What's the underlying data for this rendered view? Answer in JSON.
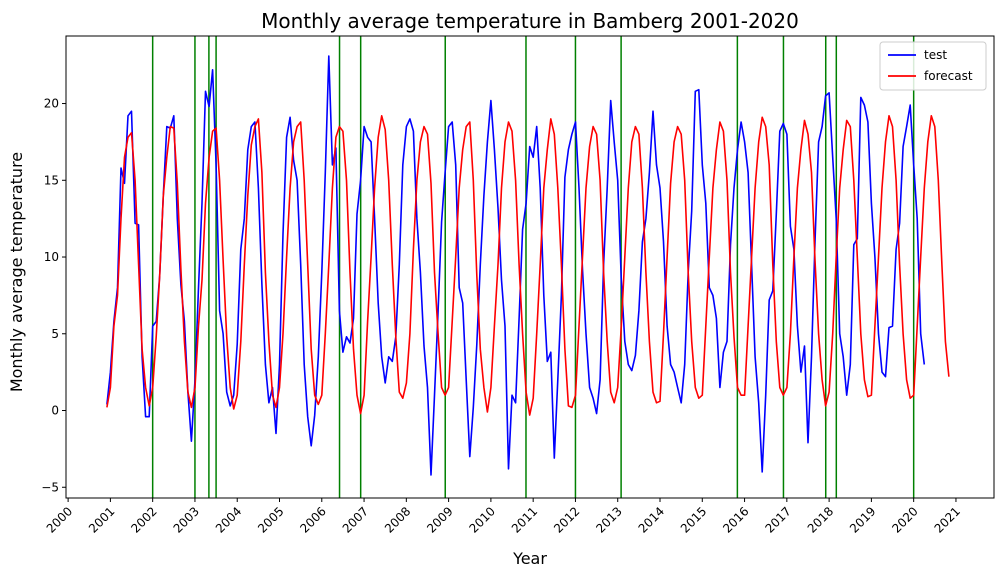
{
  "chart_data": {
    "type": "line",
    "title": "Monthly average temperature in Bamberg 2001-2020",
    "xlabel": "Year",
    "ylabel": "Monthly average temperature",
    "xlim": [
      1999.95,
      2021.9
    ],
    "ylim": [
      -5.7,
      24.4
    ],
    "x_ticks": [
      2000,
      2001,
      2002,
      2003,
      2004,
      2005,
      2006,
      2007,
      2008,
      2009,
      2010,
      2011,
      2012,
      2013,
      2014,
      2015,
      2016,
      2017,
      2018,
      2019,
      2020,
      2021
    ],
    "y_ticks": [
      -5,
      0,
      5,
      10,
      15,
      20
    ],
    "grid": false,
    "legend_position": "top-right",
    "x_start": 2000.917,
    "x_step_months": 1,
    "series": [
      {
        "name": "test",
        "color": "#0000ff",
        "values": [
          0.4,
          2.5,
          5.8,
          8.0,
          15.8,
          14.8,
          19.2,
          19.5,
          12.2,
          12.1,
          3.5,
          -0.4,
          -0.4,
          5.5,
          5.8,
          8.8,
          14.0,
          18.5,
          18.4,
          19.2,
          12.5,
          8.2,
          5.8,
          1.2,
          -2.0,
          2.0,
          8.0,
          13.5,
          20.8,
          19.8,
          22.2,
          16.0,
          6.5,
          5.0,
          1.2,
          0.3,
          1.0,
          4.3,
          10.5,
          12.5,
          17.0,
          18.5,
          18.8,
          14.5,
          8.2,
          3.0,
          0.5,
          1.5,
          -1.5,
          3.0,
          11.5,
          17.8,
          19.1,
          16.3,
          15.0,
          9.5,
          3.0,
          -0.4,
          -2.3,
          -0.3,
          3.5,
          9.0,
          15.5,
          23.1,
          16.0,
          17.1,
          6.5,
          3.8,
          4.8,
          4.4,
          6.0,
          12.8,
          15.0,
          18.5,
          17.8,
          17.5,
          12.5,
          7.0,
          3.5,
          1.8,
          3.5,
          3.2,
          4.8,
          9.5,
          16.0,
          18.5,
          19.0,
          18.2,
          12.5,
          9.0,
          4.2,
          1.5,
          -4.2,
          1.0,
          6.5,
          12.3,
          15.5,
          18.5,
          18.8,
          16.0,
          8.0,
          7.0,
          2.0,
          -3.0,
          0.2,
          4.3,
          9.5,
          14.0,
          17.5,
          20.2,
          17.0,
          13.2,
          8.5,
          5.5,
          -3.8,
          1.0,
          0.5,
          6.0,
          11.8,
          13.5,
          17.2,
          16.5,
          18.5,
          14.5,
          7.5,
          3.2,
          3.8,
          -3.1,
          2.0,
          7.5,
          15.2,
          17.0,
          18.0,
          18.8,
          14.5,
          9.2,
          5.0,
          1.5,
          0.8,
          -0.2,
          2.0,
          9.5,
          14.5,
          20.2,
          17.5,
          15.0,
          8.5,
          4.5,
          3.0,
          2.6,
          3.6,
          6.5,
          11.0,
          12.5,
          15.5,
          19.5,
          16.0,
          14.5,
          11.0,
          5.5,
          3.0,
          2.5,
          1.5,
          0.5,
          3.0,
          9.0,
          13.0,
          20.8,
          20.9,
          16.0,
          13.5,
          8.0,
          7.5,
          6.0,
          1.5,
          3.8,
          4.5,
          10.8,
          14.5,
          17.0,
          18.8,
          17.5,
          15.5,
          9.5,
          3.5,
          0.5,
          -4.0,
          1.0,
          7.2,
          7.8,
          12.8,
          18.2,
          18.7,
          18.0,
          12.0,
          10.5,
          5.5,
          2.5,
          4.2,
          -2.1,
          3.5,
          11.0,
          17.5,
          18.5,
          20.5,
          20.7,
          16.5,
          12.5,
          5.0,
          3.5,
          1.0,
          3.0,
          10.8,
          11.2,
          20.4,
          19.9,
          18.8,
          13.5,
          10.0,
          5.0,
          2.5,
          2.2,
          5.4,
          5.5,
          10.5,
          12.2,
          17.2,
          18.5,
          19.9,
          16.0,
          12.5,
          5.0,
          3.0
        ]
      },
      {
        "name": "forecast",
        "color": "#ff0000",
        "values": [
          0.2,
          1.5,
          5.5,
          7.5,
          12.5,
          16.5,
          17.8,
          18.1,
          15.0,
          9.5,
          4.0,
          1.5,
          0.3,
          1.5,
          4.8,
          8.8,
          14.0,
          16.5,
          18.5,
          18.4,
          14.8,
          9.2,
          4.5,
          1.2,
          0.2,
          1.5,
          5.5,
          8.5,
          13.5,
          16.5,
          18.2,
          18.4,
          15.0,
          9.8,
          4.8,
          1.5,
          0.1,
          1.0,
          4.5,
          9.5,
          14.0,
          17.3,
          18.5,
          19.0,
          15.5,
          9.0,
          4.5,
          1.0,
          0.2,
          1.5,
          5.0,
          10.0,
          14.5,
          17.5,
          18.5,
          18.8,
          15.0,
          9.5,
          4.0,
          1.0,
          0.4,
          1.0,
          5.0,
          9.5,
          14.5,
          17.8,
          18.5,
          18.2,
          15.0,
          9.0,
          4.0,
          1.0,
          -0.2,
          1.0,
          5.8,
          10.0,
          14.5,
          17.8,
          19.2,
          18.3,
          15.0,
          9.5,
          4.8,
          1.2,
          0.8,
          1.8,
          5.0,
          10.5,
          15.0,
          17.5,
          18.5,
          18.0,
          14.8,
          9.0,
          5.0,
          1.5,
          1.0,
          1.5,
          5.8,
          10.0,
          14.5,
          17.0,
          18.5,
          18.8,
          15.0,
          8.8,
          4.0,
          1.5,
          -0.1,
          1.5,
          5.5,
          9.5,
          14.5,
          17.5,
          18.8,
          18.2,
          15.0,
          9.5,
          5.0,
          1.2,
          -0.3,
          0.8,
          5.0,
          9.5,
          14.5,
          17.0,
          19.0,
          18.0,
          14.5,
          9.5,
          4.0,
          0.3,
          0.2,
          1.0,
          5.5,
          10.0,
          14.5,
          17.2,
          18.5,
          18.0,
          15.0,
          9.0,
          4.5,
          1.2,
          0.5,
          1.5,
          5.5,
          10.0,
          14.5,
          17.5,
          18.5,
          18.0,
          14.5,
          9.0,
          4.5,
          1.2,
          0.5,
          0.6,
          5.0,
          10.0,
          14.8,
          17.5,
          18.5,
          18.0,
          15.0,
          9.0,
          4.5,
          1.5,
          0.8,
          1.0,
          5.5,
          10.0,
          14.5,
          17.0,
          18.8,
          18.2,
          15.0,
          9.0,
          4.8,
          1.5,
          1.0,
          1.0,
          5.5,
          10.0,
          14.5,
          17.5,
          19.1,
          18.5,
          16.0,
          9.5,
          4.5,
          1.5,
          1.0,
          1.5,
          5.0,
          10.0,
          14.5,
          17.0,
          18.9,
          18.0,
          15.5,
          9.8,
          5.0,
          2.0,
          0.3,
          1.2,
          5.0,
          10.0,
          14.5,
          17.0,
          18.9,
          18.5,
          15.0,
          10.0,
          5.0,
          2.0,
          0.9,
          1.0,
          5.5,
          10.0,
          14.5,
          17.5,
          19.2,
          18.5,
          15.0,
          9.5,
          5.0,
          2.0,
          0.8,
          1.0,
          5.5,
          10.0,
          14.5,
          17.5,
          19.2,
          18.5,
          15.0,
          9.5,
          4.5,
          2.2
        ]
      }
    ],
    "vertical_lines": {
      "color": "#008000",
      "x": [
        2002.0,
        2003.0,
        2003.33,
        2003.5,
        2006.42,
        2006.92,
        2008.92,
        2010.83,
        2012.0,
        2013.08,
        2015.83,
        2016.92,
        2017.92,
        2018.17,
        2020.0
      ]
    }
  }
}
